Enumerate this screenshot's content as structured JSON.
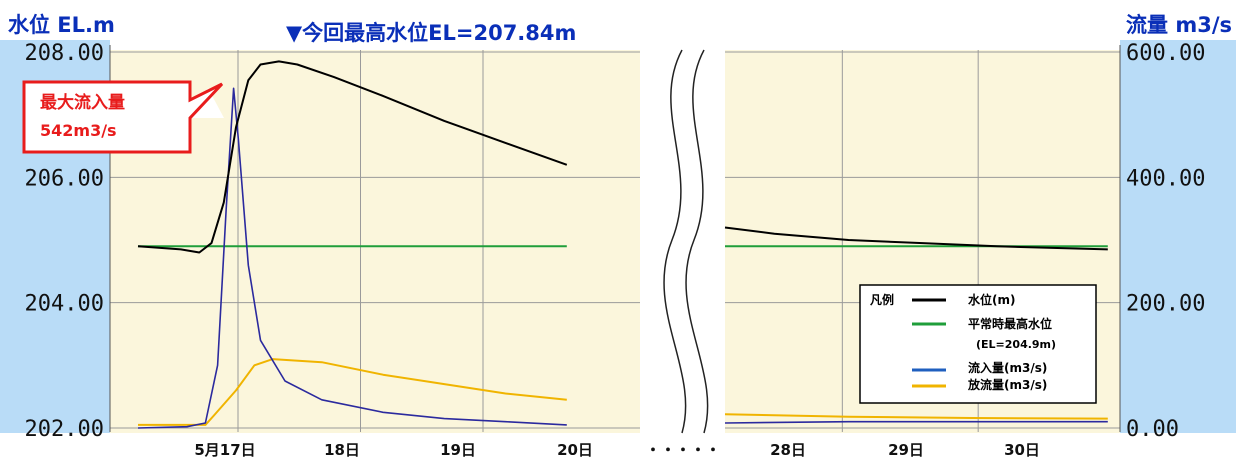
{
  "chart_data": {
    "type": "line",
    "left_axis": {
      "label": "水位 EL.m",
      "ticks": [
        "208.00",
        "206.00",
        "204.00",
        "202.00"
      ],
      "range": [
        202,
        208
      ]
    },
    "right_axis": {
      "label": "流量 m3/s",
      "ticks": [
        "600.00",
        "400.00",
        "200.00",
        "0.00"
      ],
      "range": [
        0,
        600
      ]
    },
    "x_ticks_left": [
      "5月17日",
      "18日",
      "19日",
      "20日"
    ],
    "axis_break_label": "・・・・・",
    "x_ticks_right": [
      "28日",
      "29日",
      "30日"
    ],
    "peak_label": "▼今回最高水位EL=207.84m",
    "callout": {
      "line1": "最大流入量",
      "line2": "542m3/s"
    },
    "legend": {
      "title": "凡例",
      "items": [
        {
          "label": "水位(m)",
          "color": "#000000"
        },
        {
          "label": "平常時最高水位",
          "sublabel": "(EL=204.9m)",
          "color": "#1f9e3a"
        },
        {
          "label": "流入量(m3/s)",
          "color": "#1f5fbf"
        },
        {
          "label": "放流量(m3/s)",
          "color": "#f0b400"
        }
      ]
    },
    "grid": true,
    "colors": {
      "plot_bg": "#fbf6dc",
      "axis_band": "#b9dcf7",
      "title_blue": "#0a2fb8",
      "callout_red": "#e81c1c",
      "water_level": "#000000",
      "normal_high_water": "#1f9e3a",
      "inflow": "#2b2a9e",
      "outflow": "#f0b400"
    },
    "series": [
      {
        "name": "水位(m)",
        "axis": "left",
        "panel1": [
          [
            0,
            204.9
          ],
          [
            0.35,
            204.85
          ],
          [
            0.5,
            204.8
          ],
          [
            0.6,
            204.95
          ],
          [
            0.7,
            205.6
          ],
          [
            0.8,
            206.8
          ],
          [
            0.9,
            207.55
          ],
          [
            1.0,
            207.8
          ],
          [
            1.15,
            207.85
          ],
          [
            1.3,
            207.8
          ],
          [
            1.6,
            207.6
          ],
          [
            2.0,
            207.3
          ],
          [
            2.5,
            206.9
          ],
          [
            3.0,
            206.55
          ],
          [
            3.5,
            206.2
          ]
        ],
        "panel2": [
          [
            0,
            205.2
          ],
          [
            0.4,
            205.1
          ],
          [
            1.0,
            205.0
          ],
          [
            1.6,
            204.95
          ],
          [
            2.2,
            204.9
          ],
          [
            3.1,
            204.85
          ]
        ]
      },
      {
        "name": "平常時最高水位",
        "axis": "left",
        "panel1": [
          [
            0,
            204.9
          ],
          [
            3.5,
            204.9
          ]
        ],
        "panel2": [
          [
            0,
            204.9
          ],
          [
            3.1,
            204.9
          ]
        ]
      },
      {
        "name": "流入量(m3/s)",
        "axis": "right",
        "panel1": [
          [
            0,
            0
          ],
          [
            0.4,
            2
          ],
          [
            0.55,
            8
          ],
          [
            0.65,
            100
          ],
          [
            0.72,
            350
          ],
          [
            0.78,
            542
          ],
          [
            0.82,
            460
          ],
          [
            0.9,
            260
          ],
          [
            1.0,
            140
          ],
          [
            1.2,
            75
          ],
          [
            1.5,
            45
          ],
          [
            2.0,
            25
          ],
          [
            2.5,
            15
          ],
          [
            3.0,
            10
          ],
          [
            3.5,
            5
          ]
        ],
        "panel2": [
          [
            0,
            8
          ],
          [
            1.0,
            10
          ],
          [
            2.0,
            10
          ],
          [
            3.1,
            10
          ]
        ]
      },
      {
        "name": "放流量(m3/s)",
        "axis": "right",
        "panel1": [
          [
            0,
            5
          ],
          [
            0.55,
            5
          ],
          [
            0.62,
            20
          ],
          [
            0.8,
            60
          ],
          [
            0.95,
            100
          ],
          [
            1.1,
            110
          ],
          [
            1.5,
            105
          ],
          [
            2.0,
            85
          ],
          [
            2.5,
            70
          ],
          [
            3.0,
            55
          ],
          [
            3.5,
            45
          ]
        ],
        "panel2": [
          [
            0,
            22
          ],
          [
            1.0,
            18
          ],
          [
            2.0,
            16
          ],
          [
            3.1,
            15
          ]
        ]
      }
    ]
  }
}
